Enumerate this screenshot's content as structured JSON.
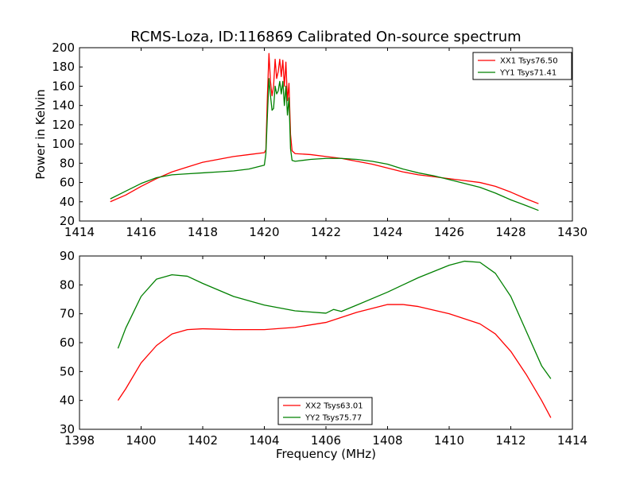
{
  "chart_data": [
    {
      "type": "line",
      "title": "RCMS-Loza, ID:116869 Calibrated On-source spectrum",
      "xlabel": "",
      "ylabel": "Power in Kelvin",
      "xlim": [
        1414,
        1430
      ],
      "ylim": [
        20,
        200
      ],
      "xticks": [
        1414,
        1416,
        1418,
        1420,
        1422,
        1424,
        1426,
        1428,
        1430
      ],
      "yticks": [
        20,
        40,
        60,
        80,
        100,
        120,
        140,
        160,
        180,
        200
      ],
      "legend_position": "top-right",
      "series": [
        {
          "name": "XX1 Tsys76.50",
          "color": "#ff0000",
          "points": [
            [
              1415.0,
              40
            ],
            [
              1415.5,
              47
            ],
            [
              1416.0,
              56
            ],
            [
              1416.5,
              64
            ],
            [
              1417.0,
              71
            ],
            [
              1417.5,
              76
            ],
            [
              1418.0,
              81
            ],
            [
              1418.5,
              84
            ],
            [
              1419.0,
              87
            ],
            [
              1419.5,
              89
            ],
            [
              1420.0,
              91
            ],
            [
              1420.05,
              94
            ],
            [
              1420.1,
              150
            ],
            [
              1420.15,
              194
            ],
            [
              1420.2,
              165
            ],
            [
              1420.25,
              150
            ],
            [
              1420.3,
              160
            ],
            [
              1420.35,
              188
            ],
            [
              1420.4,
              168
            ],
            [
              1420.45,
              175
            ],
            [
              1420.5,
              188
            ],
            [
              1420.55,
              170
            ],
            [
              1420.6,
              187
            ],
            [
              1420.65,
              160
            ],
            [
              1420.7,
              185
            ],
            [
              1420.75,
              145
            ],
            [
              1420.8,
              163
            ],
            [
              1420.85,
              110
            ],
            [
              1420.9,
              93
            ],
            [
              1421.0,
              90
            ],
            [
              1421.5,
              89
            ],
            [
              1422.0,
              87
            ],
            [
              1422.5,
              85
            ],
            [
              1423.0,
              82
            ],
            [
              1423.5,
              79
            ],
            [
              1424.0,
              75
            ],
            [
              1424.5,
              71
            ],
            [
              1425.0,
              68
            ],
            [
              1425.5,
              66
            ],
            [
              1426.0,
              64
            ],
            [
              1426.5,
              62
            ],
            [
              1427.0,
              60
            ],
            [
              1427.5,
              56
            ],
            [
              1428.0,
              50
            ],
            [
              1428.5,
              43
            ],
            [
              1428.9,
              38
            ]
          ]
        },
        {
          "name": "YY1 Tsys71.41",
          "color": "#008000",
          "points": [
            [
              1415.0,
              43
            ],
            [
              1415.5,
              51
            ],
            [
              1416.0,
              59
            ],
            [
              1416.5,
              65
            ],
            [
              1417.0,
              68
            ],
            [
              1417.5,
              69
            ],
            [
              1418.0,
              70
            ],
            [
              1418.5,
              71
            ],
            [
              1419.0,
              72
            ],
            [
              1419.5,
              74
            ],
            [
              1420.0,
              78
            ],
            [
              1420.05,
              90
            ],
            [
              1420.1,
              130
            ],
            [
              1420.15,
              168
            ],
            [
              1420.2,
              150
            ],
            [
              1420.25,
              135
            ],
            [
              1420.3,
              137
            ],
            [
              1420.35,
              160
            ],
            [
              1420.4,
              152
            ],
            [
              1420.45,
              155
            ],
            [
              1420.5,
              165
            ],
            [
              1420.55,
              152
            ],
            [
              1420.6,
              165
            ],
            [
              1420.65,
              140
            ],
            [
              1420.7,
              160
            ],
            [
              1420.75,
              130
            ],
            [
              1420.8,
              148
            ],
            [
              1420.85,
              95
            ],
            [
              1420.9,
              83
            ],
            [
              1421.0,
              82
            ],
            [
              1421.5,
              84
            ],
            [
              1422.0,
              85
            ],
            [
              1422.5,
              85
            ],
            [
              1423.0,
              84
            ],
            [
              1423.5,
              82
            ],
            [
              1424.0,
              79
            ],
            [
              1424.5,
              74
            ],
            [
              1425.0,
              70
            ],
            [
              1425.5,
              67
            ],
            [
              1426.0,
              63
            ],
            [
              1426.5,
              59
            ],
            [
              1427.0,
              55
            ],
            [
              1427.5,
              49
            ],
            [
              1428.0,
              42
            ],
            [
              1428.5,
              36
            ],
            [
              1428.9,
              31
            ]
          ]
        }
      ]
    },
    {
      "type": "line",
      "title": "",
      "xlabel": "Frequency (MHz)",
      "ylabel": "",
      "xlim": [
        1398,
        1414
      ],
      "ylim": [
        30,
        90
      ],
      "xticks": [
        1398,
        1400,
        1402,
        1404,
        1406,
        1408,
        1410,
        1412,
        1414
      ],
      "yticks": [
        30,
        40,
        50,
        60,
        70,
        80,
        90
      ],
      "legend_position": "bottom-center",
      "series": [
        {
          "name": "XX2 Tsys63.01",
          "color": "#ff0000",
          "points": [
            [
              1399.25,
              40
            ],
            [
              1399.5,
              44
            ],
            [
              1400.0,
              53
            ],
            [
              1400.5,
              59
            ],
            [
              1401.0,
              63
            ],
            [
              1401.5,
              64.5
            ],
            [
              1402.0,
              64.8
            ],
            [
              1403.0,
              64.5
            ],
            [
              1404.0,
              64.5
            ],
            [
              1405.0,
              65.3
            ],
            [
              1406.0,
              67
            ],
            [
              1407.0,
              70.5
            ],
            [
              1408.0,
              73.2
            ],
            [
              1408.5,
              73.2
            ],
            [
              1409.0,
              72.5
            ],
            [
              1410.0,
              70
            ],
            [
              1411.0,
              66.5
            ],
            [
              1411.5,
              63
            ],
            [
              1412.0,
              57
            ],
            [
              1412.5,
              49
            ],
            [
              1413.0,
              40
            ],
            [
              1413.3,
              34
            ]
          ]
        },
        {
          "name": "YY2 Tsys75.77",
          "color": "#008000",
          "points": [
            [
              1399.25,
              58
            ],
            [
              1399.5,
              65
            ],
            [
              1400.0,
              76
            ],
            [
              1400.5,
              82
            ],
            [
              1401.0,
              83.5
            ],
            [
              1401.5,
              83
            ],
            [
              1402.0,
              80.5
            ],
            [
              1403.0,
              76
            ],
            [
              1404.0,
              73
            ],
            [
              1405.0,
              71
            ],
            [
              1406.0,
              70.2
            ],
            [
              1406.25,
              71.5
            ],
            [
              1406.5,
              70.8
            ],
            [
              1407.0,
              73
            ],
            [
              1408.0,
              77.5
            ],
            [
              1409.0,
              82.5
            ],
            [
              1410.0,
              86.8
            ],
            [
              1410.5,
              88.2
            ],
            [
              1411.0,
              87.8
            ],
            [
              1411.5,
              84
            ],
            [
              1412.0,
              76
            ],
            [
              1412.5,
              64
            ],
            [
              1413.0,
              52
            ],
            [
              1413.3,
              47.5
            ]
          ]
        }
      ]
    }
  ]
}
